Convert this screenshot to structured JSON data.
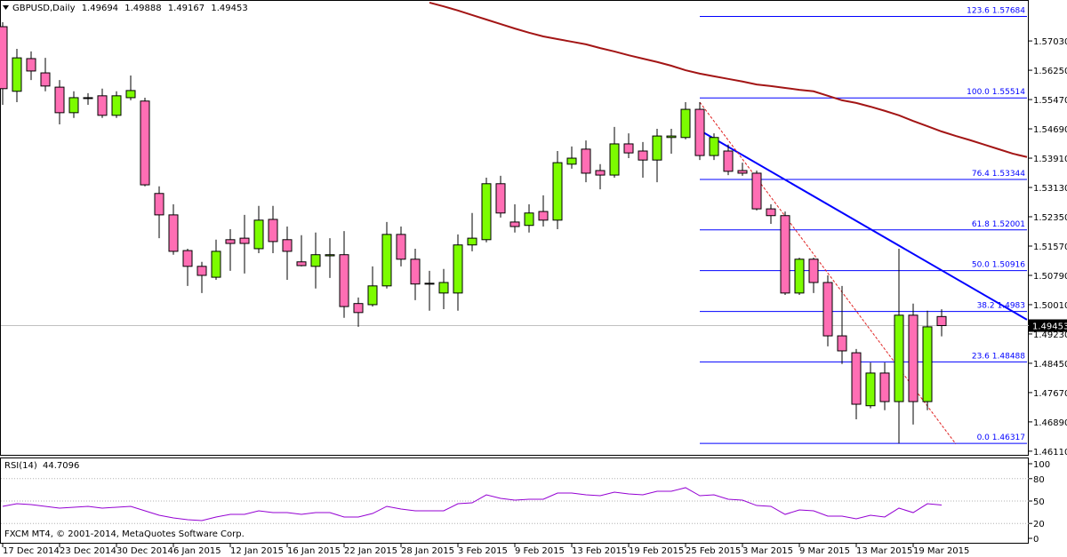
{
  "chart_data": {
    "type": "candlestick",
    "title": "GBPUSD,Daily",
    "footer": "FXCM MT4, © 2001-2014, MetaQuotes Software Corp.",
    "categories": [
      "17 Dec 2014",
      null,
      null,
      null,
      "23 Dec 2014",
      null,
      null,
      null,
      "30 Dec 2014",
      null,
      null,
      null,
      "6 Jan 2015",
      null,
      null,
      null,
      "12 Jan 2015",
      null,
      null,
      null,
      "16 Jan 2015",
      null,
      null,
      null,
      "22 Jan 2015",
      null,
      null,
      null,
      "28 Jan 2015",
      null,
      null,
      null,
      "3 Feb 2015",
      null,
      null,
      null,
      "9 Feb 2015",
      null,
      null,
      null,
      "13 Feb 2015",
      null,
      null,
      null,
      "19 Feb 2015",
      null,
      null,
      null,
      "25 Feb 2015",
      null,
      null,
      null,
      "3 Mar 2015",
      null,
      null,
      null,
      "9 Mar 2015",
      null,
      null,
      null,
      "13 Mar 2015",
      null,
      null,
      null,
      "19 Mar 2015",
      null,
      null,
      null,
      null,
      null,
      null,
      null,
      null
    ],
    "open": [
      1.5741,
      1.5569,
      1.5656,
      1.5618,
      1.558,
      1.5512,
      1.555,
      1.5557,
      1.5505,
      1.5552,
      1.5543,
      1.5297,
      1.524,
      1.5145,
      1.5103,
      1.5074,
      1.5174,
      1.5178,
      1.515,
      1.5228,
      1.5174,
      1.5115,
      1.5103,
      1.5131,
      1.5134,
      1.5004,
      1.5001,
      1.5051,
      1.5188,
      1.5122,
      1.5058,
      1.5032,
      1.5032,
      1.516,
      1.5174,
      1.5323,
      1.5221,
      1.5212,
      1.5249,
      1.5226,
      1.5375,
      1.5415,
      1.5358,
      1.5346,
      1.5429,
      1.541,
      1.5386,
      1.5446,
      1.5446,
      1.5521,
      1.5398,
      1.541,
      1.5358,
      1.5351,
      1.5256,
      1.5238,
      1.5032,
      1.5122,
      1.506,
      1.4918,
      1.4873,
      1.4732,
      1.4819,
      1.4743,
      1.4973,
      1.4743,
      1.49694,
      null,
      null,
      null,
      null,
      null,
      null
    ],
    "high": [
      1.5753,
      1.5682,
      1.5675,
      1.5658,
      1.5599,
      1.5569,
      1.5564,
      1.5576,
      1.5569,
      1.5611,
      1.5552,
      1.5316,
      1.5268,
      1.515,
      1.5115,
      1.5174,
      1.5202,
      1.524,
      1.5264,
      1.5264,
      1.5209,
      1.5186,
      1.5193,
      1.5178,
      1.5197,
      1.502,
      1.5103,
      1.5221,
      1.5209,
      1.515,
      1.5091,
      1.5096,
      1.5188,
      1.5245,
      1.5339,
      1.5344,
      1.5268,
      1.5268,
      1.5292,
      1.541,
      1.5422,
      1.5438,
      1.5375,
      1.5474,
      1.5457,
      1.5434,
      1.5469,
      1.5469,
      1.554,
      1.554,
      1.5457,
      1.5427,
      1.5379,
      1.5358,
      1.5268,
      1.5249,
      1.5126,
      1.5126,
      1.5079,
      1.5051,
      1.4883,
      1.4847,
      1.4847,
      1.515,
      1.5004,
      1.4985,
      1.49888,
      null,
      null,
      null,
      null,
      null,
      null
    ],
    "low": [
      1.5533,
      1.554,
      1.5599,
      1.5569,
      1.5481,
      1.5498,
      1.5533,
      1.5498,
      1.5498,
      1.5545,
      1.5316,
      1.5178,
      1.5134,
      1.5051,
      1.5032,
      1.5067,
      1.5091,
      1.5084,
      1.5138,
      1.5138,
      1.5067,
      1.5103,
      1.5044,
      1.5072,
      1.4966,
      1.4942,
      1.4996,
      1.5044,
      1.5103,
      1.5013,
      1.4985,
      1.4989,
      1.4985,
      1.5143,
      1.5167,
      1.5233,
      1.5193,
      1.5193,
      1.5209,
      1.5202,
      1.5363,
      1.5327,
      1.5308,
      1.5339,
      1.5391,
      1.5339,
      1.5327,
      1.5403,
      1.5441,
      1.5386,
      1.5386,
      1.5346,
      1.5344,
      1.5252,
      1.5216,
      1.5027,
      1.5027,
      1.5032,
      1.489,
      1.4843,
      1.4696,
      1.4725,
      1.472,
      1.46317,
      1.4682,
      1.472,
      1.49167,
      null,
      null,
      null,
      null,
      null,
      null
    ],
    "close": [
      1.5576,
      1.5658,
      1.5623,
      1.5583,
      1.5512,
      1.5552,
      1.5552,
      1.5505,
      1.5557,
      1.5571,
      1.532,
      1.524,
      1.5143,
      1.5103,
      1.5079,
      1.5143,
      1.5164,
      1.5164,
      1.5226,
      1.5169,
      1.5143,
      1.5105,
      1.5134,
      1.5134,
      1.4996,
      1.498,
      1.5051,
      1.5188,
      1.5122,
      1.5056,
      1.5056,
      1.506,
      1.516,
      1.5178,
      1.5323,
      1.5245,
      1.5209,
      1.5245,
      1.5226,
      1.5379,
      1.5391,
      1.5351,
      1.5346,
      1.5429,
      1.5405,
      1.5386,
      1.545,
      1.545,
      1.5521,
      1.5398,
      1.5446,
      1.5356,
      1.5351,
      1.5256,
      1.5238,
      1.5032,
      1.5122,
      1.506,
      1.4918,
      1.4878,
      1.4736,
      1.4819,
      1.4743,
      1.4973,
      1.4743,
      1.4942,
      1.49453,
      null,
      null,
      null,
      null,
      null,
      null
    ],
    "up_color": "#7cfc00",
    "down_color": "#ff6eb4",
    "ylim": [
      1.4606,
      1.5812
    ],
    "yticks": [
      {
        "value": 1.5703,
        "label": "1.57030"
      },
      {
        "value": 1.5625,
        "label": "1.56250"
      },
      {
        "value": 1.5547,
        "label": "1.55470"
      },
      {
        "value": 1.5469,
        "label": "1.54690"
      },
      {
        "value": 1.5391,
        "label": "1.53910"
      },
      {
        "value": 1.5313,
        "label": "1.53130"
      },
      {
        "value": 1.5235,
        "label": "1.52350"
      },
      {
        "value": 1.5157,
        "label": "1.51570"
      },
      {
        "value": 1.5079,
        "label": "1.50790"
      },
      {
        "value": 1.5001,
        "label": "1.50010"
      },
      {
        "value": 1.4923,
        "label": "1.49230"
      },
      {
        "value": 1.4845,
        "label": "1.48450"
      },
      {
        "value": 1.4767,
        "label": "1.47670"
      },
      {
        "value": 1.4689,
        "label": "1.46890"
      },
      {
        "value": 1.4611,
        "label": "1.46110"
      }
    ],
    "ma": {
      "color": "#a31515",
      "values": [
        null,
        null,
        null,
        null,
        null,
        null,
        null,
        null,
        null,
        null,
        null,
        null,
        null,
        null,
        null,
        null,
        null,
        null,
        null,
        null,
        null,
        null,
        null,
        null,
        null,
        null,
        null,
        null,
        null,
        null,
        1.5805,
        1.5795,
        1.5784,
        1.5772,
        1.576,
        1.5748,
        1.5736,
        1.5725,
        1.5715,
        1.5708,
        1.5701,
        1.5694,
        1.5684,
        1.5675,
        1.5665,
        1.5656,
        1.5647,
        1.5637,
        1.5625,
        1.5616,
        1.5609,
        1.5602,
        1.5595,
        1.5587,
        1.5583,
        1.5578,
        1.5573,
        1.5569,
        1.5557,
        1.5545,
        1.5538,
        1.5528,
        1.5517,
        1.5505,
        1.549,
        1.5476,
        1.5462,
        1.545,
        1.5439,
        1.5427,
        1.5415,
        1.5403,
        1.5394
      ]
    },
    "trendlines": [
      {
        "color": "#0000ff",
        "dashed": false,
        "x": [
          49,
          72
        ],
        "values": [
          1.5465,
          1.4961
        ]
      },
      {
        "color": "#e02020",
        "dashed": true,
        "x": [
          49,
          67
        ],
        "values": [
          1.554,
          1.463
        ]
      }
    ],
    "fibonacci": {
      "color": "#0000ff",
      "x": [
        49,
        72
      ],
      "levels": [
        {
          "level": "123.6",
          "value": 1.57684
        },
        {
          "level": "100.0",
          "value": 1.55514
        },
        {
          "level": "76.4",
          "value": 1.53344
        },
        {
          "level": "61.8",
          "value": 1.52001
        },
        {
          "level": "50.0",
          "value": 1.50916
        },
        {
          "level": "38.2",
          "value": 1.4983
        },
        {
          "level": "23.6",
          "value": 1.48488
        },
        {
          "level": "0.0",
          "value": 1.46317
        }
      ]
    },
    "rsi": {
      "title": "RSI(14)",
      "color": "#9400d3",
      "ylim": [
        0,
        100
      ],
      "yticks": [
        100,
        80,
        50,
        20,
        0
      ],
      "values": [
        42.9,
        46.4,
        45.2,
        42.9,
        40.5,
        41.7,
        42.9,
        40.5,
        41.7,
        42.9,
        36.9,
        31.0,
        27.4,
        25.0,
        23.8,
        28.6,
        32.1,
        32.1,
        36.9,
        34.5,
        34.5,
        32.1,
        34.5,
        34.5,
        28.6,
        28.6,
        33.3,
        42.9,
        39.3,
        36.9,
        36.9,
        36.9,
        46.4,
        47.6,
        58.3,
        53.6,
        51.2,
        52.4,
        52.4,
        60.7,
        60.7,
        58.3,
        57.1,
        61.9,
        59.5,
        58.3,
        63.1,
        63.1,
        67.9,
        57.1,
        58.3,
        52.4,
        51.2,
        44.0,
        42.9,
        32.1,
        38.1,
        36.9,
        29.8,
        29.8,
        26.2,
        31.0,
        28.6,
        40.5,
        34.5,
        46.4,
        44.7096,
        null,
        null,
        null,
        null,
        null,
        null
      ]
    }
  }
}
